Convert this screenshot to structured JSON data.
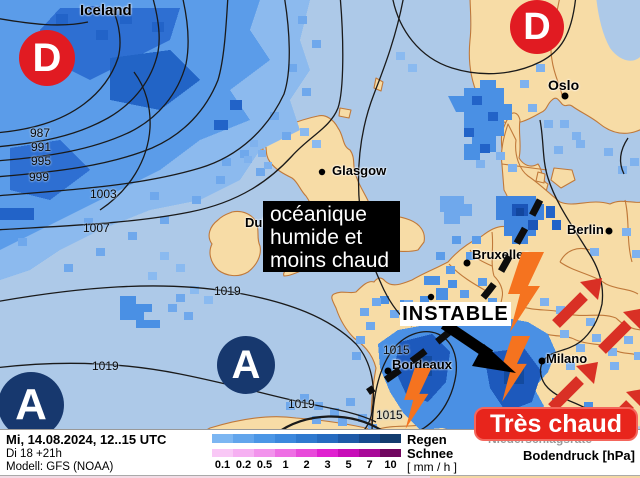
{
  "map": {
    "cities": [
      {
        "name": "Iceland"
      },
      {
        "name": "Glasgow"
      },
      {
        "name": "Oslo"
      },
      {
        "name": "Berlin"
      },
      {
        "name": "Bruxelles"
      },
      {
        "name": "Bordeaux"
      },
      {
        "name": "Milano"
      },
      {
        "name": "Dublin"
      }
    ],
    "pressure_systems": [
      {
        "letter": "D",
        "type": "low"
      },
      {
        "letter": "D",
        "type": "low"
      },
      {
        "letter": "A",
        "type": "high"
      },
      {
        "letter": "A",
        "type": "high"
      }
    ],
    "isobar_labels": [
      "987",
      "991",
      "995",
      "999",
      "1003",
      "1007",
      "1019",
      "1019",
      "1019",
      "1015",
      "1015"
    ],
    "annotations": {
      "oceanic": [
        "océanique",
        "humide et",
        "moins chaud"
      ],
      "instable": "INSTABLE",
      "tres_chaud": "Très chaud"
    }
  },
  "legend": {
    "datetime": "Mi, 14.08.2024, 12..15 UTC",
    "run": "Di 18 +21h",
    "model": "Modell: GFS (NOAA)",
    "scale_values": [
      "0.1",
      "0.2",
      "0.5",
      "1",
      "2",
      "3",
      "5",
      "7",
      "10"
    ],
    "rain_label": "Regen",
    "snow_label": "Schnee",
    "unit_label": "[ mm / h ]",
    "covered_param_label": "Niederschlagsrate",
    "pressure_label": "Bodendruck [hPa]"
  },
  "colors": {
    "sea": "#adc9e8",
    "land": "#f7dca6",
    "country_border": "#c0793a",
    "low_red": "#e11b22",
    "high_navy": "#17386e",
    "arrow_red": "#d93025",
    "bolt_orange": "#f5731f",
    "tres_chaud_red": "#e8251c",
    "rain_scale": [
      "#7cb6f2",
      "#62a5ec",
      "#4b96e6",
      "#3c88dd",
      "#2f79cf",
      "#266bc0",
      "#1e5aa8",
      "#174a8e",
      "#123c6e"
    ],
    "snow_scale": [
      "#f9c8f6",
      "#f6b0f2",
      "#f293ec",
      "#ee6fe4",
      "#e84ada",
      "#e020d0",
      "#c80cb8",
      "#a80898",
      "#70055f"
    ]
  }
}
